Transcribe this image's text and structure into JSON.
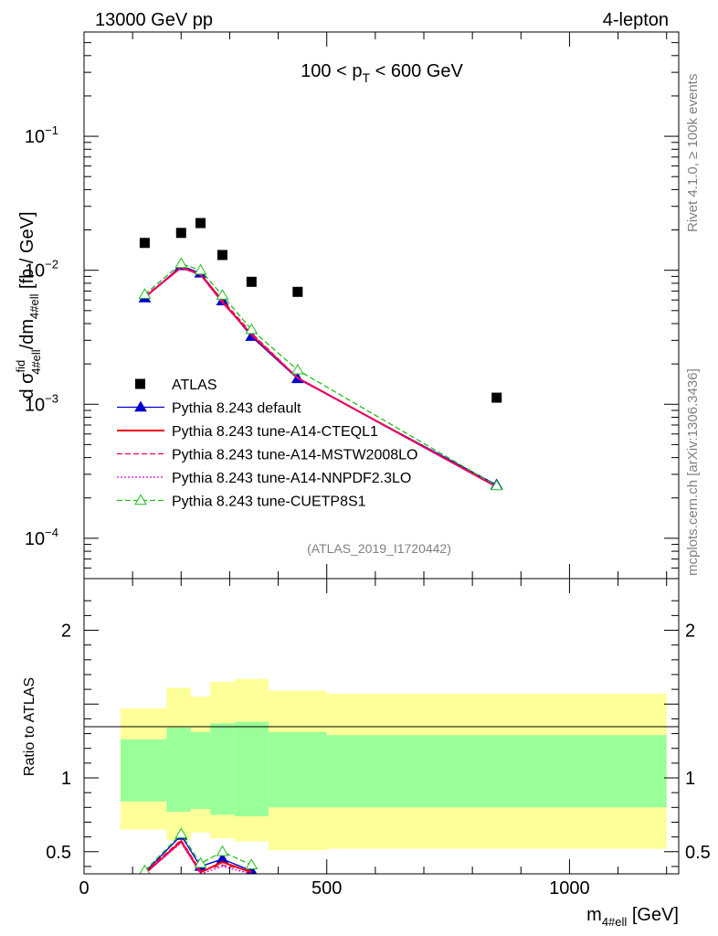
{
  "header": {
    "energy_label": "13000 GeV pp",
    "process_label": "4-lepton",
    "pt_range_label": "100 < p",
    "pt_range_sub": "T",
    "pt_range_tail": " < 600 GeV",
    "analysis_id": "(ATLAS_2019_I1720442)",
    "side_label_top": "Rivet 4.1.0, ≥ 100k events",
    "side_label_bottom": "mcplots.cern.ch [arXiv:1306.3436]"
  },
  "chart_data": [
    {
      "type": "line",
      "title": "100 < pT < 600 GeV",
      "ylabel": "dσ^fid_4#ell/dm_4#ell [fb / GeV]",
      "yscale": "log",
      "ylim": [
        5e-05,
        0.6
      ],
      "xlim": [
        0,
        1225
      ],
      "ytick_labels": [
        {
          "base": "10",
          "exp": "−4",
          "value": 0.0001
        },
        {
          "base": "10",
          "exp": "−3",
          "value": 0.001
        },
        {
          "base": "10",
          "exp": "−2",
          "value": 0.01
        },
        {
          "base": "10",
          "exp": "−1",
          "value": 0.1
        }
      ],
      "data": {
        "name": "ATLAS",
        "x": [
          125,
          200,
          240,
          285,
          345,
          440,
          850
        ],
        "y": [
          0.016,
          0.019,
          0.0225,
          0.013,
          0.0082,
          0.0069,
          0.00112
        ]
      },
      "series": [
        {
          "name": "Pythia 8.243 default",
          "color": "#0000cc",
          "style": "solid",
          "marker": "triangle-filled",
          "x": [
            125,
            200,
            240,
            285,
            345,
            440,
            850
          ],
          "y": [
            0.0062,
            0.0108,
            0.0095,
            0.0059,
            0.0032,
            0.00155,
            0.00025
          ]
        },
        {
          "name": "Pythia 8.243 tune-A14-CTEQL1",
          "color": "#ee0000",
          "style": "solid",
          "marker": "none",
          "x": [
            125,
            200,
            240,
            285,
            345,
            440,
            850
          ],
          "y": [
            0.0063,
            0.0105,
            0.0093,
            0.0058,
            0.0033,
            0.00157,
            0.000242
          ]
        },
        {
          "name": "Pythia 8.243 tune-A14-MSTW2008LO",
          "color": "#ee0055",
          "style": "dashed",
          "marker": "none",
          "x": [
            125,
            200,
            240,
            285,
            345,
            440,
            850
          ],
          "y": [
            0.0064,
            0.0106,
            0.0094,
            0.006,
            0.0034,
            0.00158,
            0.000244
          ]
        },
        {
          "name": "Pythia 8.243 tune-A14-NNPDF2.3LO",
          "color": "#dd00dd",
          "style": "dotted",
          "marker": "none",
          "x": [
            125,
            200,
            240,
            285,
            345,
            440,
            850
          ],
          "y": [
            0.0063,
            0.0104,
            0.0092,
            0.0057,
            0.0033,
            0.00156,
            0.000241
          ]
        },
        {
          "name": "Pythia 8.243 tune-CUETP8S1",
          "color": "#22bb22",
          "style": "dashed",
          "marker": "triangle-open",
          "x": [
            125,
            200,
            240,
            285,
            345,
            440,
            850
          ],
          "y": [
            0.0066,
            0.0112,
            0.01,
            0.0065,
            0.0036,
            0.0018,
            0.000246
          ]
        }
      ]
    },
    {
      "type": "line",
      "ylabel": "Ratio to ATLAS",
      "xlabel_main": "m",
      "xlabel_sub": "4#ell",
      "xlabel_unit": " [GeV]",
      "xlim": [
        0,
        1225
      ],
      "ylim": [
        0.35,
        2.35
      ],
      "x_tick_labels": [
        {
          "text": "0",
          "value": 0
        },
        {
          "text": "500",
          "value": 500
        },
        {
          "text": "1000",
          "value": 1000
        }
      ],
      "y_tick_labels": [
        {
          "text": "0.5",
          "value": 0.5
        },
        {
          "text": "1",
          "value": 1
        },
        {
          "text": "2",
          "value": 2
        }
      ],
      "bands": [
        {
          "x0": 75,
          "x1": 170,
          "y_lo_outer": 0.65,
          "y_hi_outer": 1.47,
          "y_lo_inner": 0.84,
          "y_hi_inner": 1.26
        },
        {
          "x0": 170,
          "x1": 220,
          "y_lo_outer": 0.58,
          "y_hi_outer": 1.61,
          "y_lo_inner": 0.77,
          "y_hi_inner": 1.34
        },
        {
          "x0": 220,
          "x1": 260,
          "y_lo_outer": 0.63,
          "y_hi_outer": 1.55,
          "y_lo_inner": 0.79,
          "y_hi_inner": 1.31
        },
        {
          "x0": 260,
          "x1": 310,
          "y_lo_outer": 0.59,
          "y_hi_outer": 1.65,
          "y_lo_inner": 0.75,
          "y_hi_inner": 1.37
        },
        {
          "x0": 310,
          "x1": 380,
          "y_lo_outer": 0.57,
          "y_hi_outer": 1.67,
          "y_lo_inner": 0.74,
          "y_hi_inner": 1.38
        },
        {
          "x0": 380,
          "x1": 500,
          "y_lo_outer": 0.51,
          "y_hi_outer": 1.59,
          "y_lo_inner": 0.8,
          "y_hi_inner": 1.31
        },
        {
          "x0": 500,
          "x1": 1200,
          "y_lo_outer": 0.52,
          "y_hi_outer": 1.57,
          "y_lo_inner": 0.8,
          "y_hi_inner": 1.29
        }
      ],
      "series": [
        {
          "name": "Pythia 8.243 default",
          "color": "#0000cc",
          "style": "solid",
          "marker": "triangle-filled",
          "x": [
            125,
            200,
            240,
            285,
            345
          ],
          "y": [
            0.36,
            0.61,
            0.4,
            0.45,
            0.37
          ]
        },
        {
          "name": "Pythia 8.243 tune-A14-CTEQL1",
          "color": "#ee0000",
          "style": "solid",
          "marker": "none",
          "x": [
            125,
            200,
            240,
            285,
            345
          ],
          "y": [
            0.35,
            0.57,
            0.36,
            0.43,
            0.36
          ]
        },
        {
          "name": "Pythia 8.243 tune-A14-MSTW2008LO",
          "color": "#ee0055",
          "style": "dashed",
          "marker": "none",
          "x": [
            125,
            200,
            240,
            285,
            345
          ],
          "y": [
            0.36,
            0.58,
            0.37,
            0.41,
            0.37
          ]
        },
        {
          "name": "Pythia 8.243 tune-A14-NNPDF2.3LO",
          "color": "#dd00dd",
          "style": "dotted",
          "marker": "none",
          "x": [
            125,
            200,
            240,
            285,
            345
          ],
          "y": [
            0.35,
            0.56,
            0.35,
            0.4,
            0.35
          ]
        },
        {
          "name": "Pythia 8.243 tune-CUETP8S1",
          "color": "#22bb22",
          "style": "dashed",
          "marker": "triangle-open",
          "x": [
            125,
            200,
            240,
            285,
            345
          ],
          "y": [
            0.37,
            0.62,
            0.42,
            0.5,
            0.41
          ]
        }
      ]
    }
  ],
  "legend": [
    {
      "label": "ATLAS",
      "marker": "square",
      "color": "#000000"
    },
    {
      "label": "Pythia 8.243 default",
      "color": "#0000cc",
      "style": "solid",
      "marker": "triangle-filled"
    },
    {
      "label": "Pythia 8.243 tune-A14-CTEQL1",
      "color": "#ee0000",
      "style": "solid",
      "marker": "none"
    },
    {
      "label": "Pythia 8.243 tune-A14-MSTW2008LO",
      "color": "#ee0055",
      "style": "dashed",
      "marker": "none"
    },
    {
      "label": "Pythia 8.243 tune-A14-NNPDF2.3LO",
      "color": "#dd00dd",
      "style": "dotted",
      "marker": "none"
    },
    {
      "label": "Pythia 8.243 tune-CUETP8S1",
      "color": "#22bb22",
      "style": "dashed",
      "marker": "triangle-open"
    }
  ],
  "colors": {
    "band_outer": "#ffff99",
    "band_inner": "#99ff99"
  }
}
